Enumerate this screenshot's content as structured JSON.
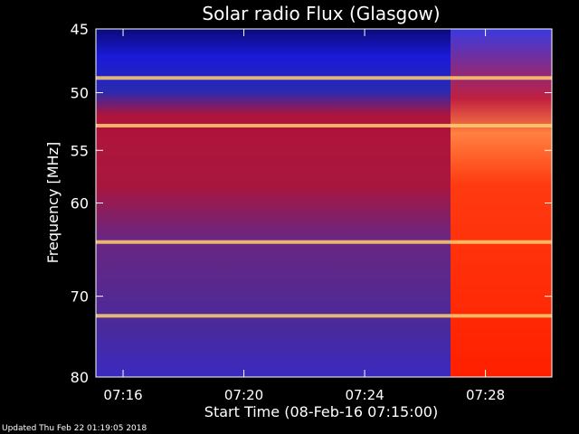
{
  "footer": {
    "updated": "Updated Thu Feb 22 01:19:05 2018"
  },
  "chart_data": {
    "type": "heatmap",
    "title": "Solar radio Flux (Glasgow)",
    "xlabel": "Start Time (08-Feb-16 07:15:00)",
    "ylabel": "Frequency [MHz]",
    "x_ticks": [
      {
        "label": "07:16",
        "minute": 1
      },
      {
        "label": "07:20",
        "minute": 5
      },
      {
        "label": "07:24",
        "minute": 9
      },
      {
        "label": "07:28",
        "minute": 13
      }
    ],
    "y_ticks": [
      {
        "label": "45",
        "mhz": 45
      },
      {
        "label": "50",
        "mhz": 50
      },
      {
        "label": "55",
        "mhz": 55
      },
      {
        "label": "60",
        "mhz": 60
      },
      {
        "label": "70",
        "mhz": 70
      },
      {
        "label": "80",
        "mhz": 80
      }
    ],
    "x_range_minutes": [
      0.1,
      15.2
    ],
    "y_range_mhz": [
      45,
      80
    ],
    "y_scale": "log",
    "event_start_minute": 11.9,
    "emission_lines_mhz": [
      48.8,
      52.8,
      64.0,
      72.3
    ],
    "colors": {
      "quiet_low": "#0a0cc4",
      "quiet_mid": "#5e2a8a",
      "warm": "#b8163c",
      "hot": "#ff2a00",
      "burst": "#ff7a3a",
      "line": "#ffd070"
    }
  }
}
